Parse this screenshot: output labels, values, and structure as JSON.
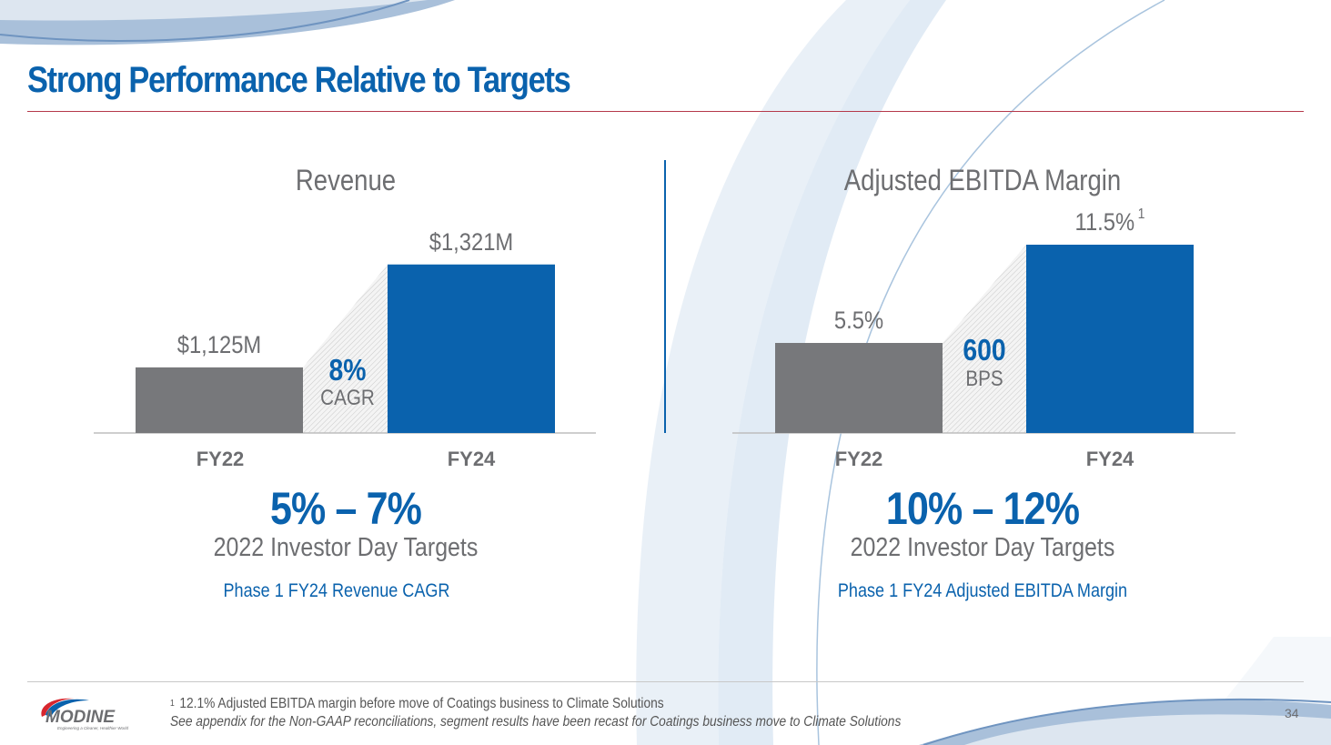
{
  "slide": {
    "title": "Strong Performance Relative to Targets",
    "page_number": "34"
  },
  "colors": {
    "brand_blue": "#0a62ad",
    "bar_gray": "#77787b",
    "text_gray": "#6d6e71",
    "title_rule": "#b5394a"
  },
  "chart_data": [
    {
      "type": "bar",
      "title": "Revenue",
      "categories": [
        "FY22",
        "FY24"
      ],
      "values": [
        1125,
        1321
      ],
      "value_labels": [
        "$1,125M",
        "$1,321M"
      ],
      "units": "$M",
      "growth": {
        "value": "8%",
        "label": "CAGR"
      },
      "bar_colors": [
        "#77787b",
        "#0a62ad"
      ],
      "ylim": [
        1000,
        1350
      ],
      "grid": false,
      "target": {
        "range": "5% – 7%",
        "source": "2022 Investor Day Targets",
        "description": "Phase 1 FY24 Revenue CAGR"
      }
    },
    {
      "type": "bar",
      "title": "Adjusted EBITDA Margin",
      "categories": [
        "FY22",
        "FY24"
      ],
      "values": [
        5.5,
        11.5
      ],
      "value_labels": [
        "5.5%",
        "11.5%"
      ],
      "value_footnotes": [
        "",
        "1"
      ],
      "units": "%",
      "growth": {
        "value": "600",
        "label": "BPS"
      },
      "bar_colors": [
        "#77787b",
        "#0a62ad"
      ],
      "ylim": [
        0,
        11.5
      ],
      "grid": false,
      "target": {
        "range": "10% – 12%",
        "source": "2022 Investor Day Targets",
        "description": "Phase 1 FY24 Adjusted EBITDA Margin"
      }
    }
  ],
  "footer": {
    "footnote_marker": "1",
    "footnote_text": "12.1% Adjusted EBITDA margin before move of Coatings business to Climate Solutions",
    "note_text": "See appendix for the Non-GAAP reconciliations, segment results have been recast for Coatings business move to Climate Solutions",
    "logo_name": "MODINE",
    "logo_tagline": "Engineering a Cleaner, Healthier World"
  }
}
